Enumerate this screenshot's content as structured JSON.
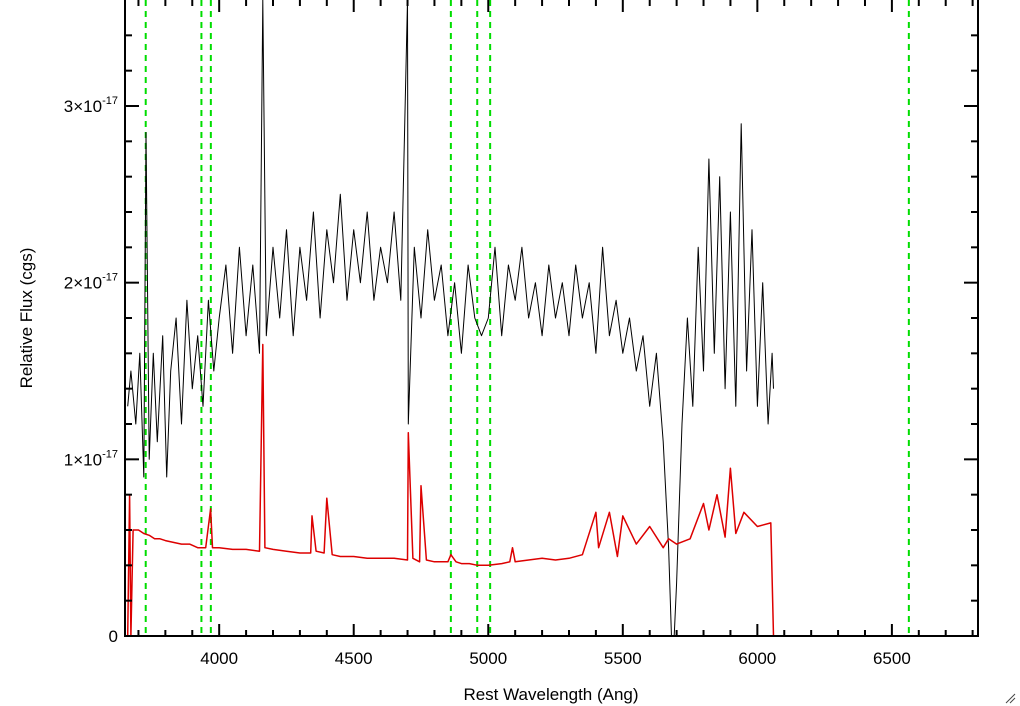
{
  "chart_data": {
    "type": "line",
    "xlabel": "Rest Wavelength (Ang)",
    "ylabel": "Relative Flux (cgs)",
    "xlim": [
      3650,
      6820
    ],
    "ylim": [
      0,
      3.6e-17
    ],
    "x_ticks": [
      {
        "value": 4000,
        "label": "4000"
      },
      {
        "value": 4500,
        "label": "4500"
      },
      {
        "value": 5000,
        "label": "5000"
      },
      {
        "value": 5500,
        "label": "5500"
      },
      {
        "value": 6000,
        "label": "6000"
      },
      {
        "value": 6500,
        "label": "6500"
      }
    ],
    "y_ticks": [
      {
        "value": 0,
        "mantissa": "0",
        "exponent": ""
      },
      {
        "value": 1e-17,
        "mantissa": "1×10",
        "exponent": "-17"
      },
      {
        "value": 2e-17,
        "mantissa": "2×10",
        "exponent": "-17"
      },
      {
        "value": 3e-17,
        "mantissa": "3×10",
        "exponent": "-17"
      }
    ],
    "grid": false,
    "reference_lines": {
      "style": "dashed",
      "color": "#00dd00",
      "x": [
        3727,
        3934,
        3969,
        4861,
        4959,
        5007,
        6563
      ]
    },
    "series": [
      {
        "color": "#000000",
        "line_width": 1,
        "x": [
          3660,
          3672,
          3690,
          3705,
          3720,
          3728,
          3740,
          3755,
          3770,
          3790,
          3805,
          3820,
          3840,
          3860,
          3880,
          3900,
          3920,
          3940,
          3960,
          3980,
          4000,
          4025,
          4050,
          4075,
          4100,
          4125,
          4150,
          4162,
          4175,
          4200,
          4225,
          4250,
          4275,
          4300,
          4325,
          4350,
          4375,
          4400,
          4425,
          4450,
          4475,
          4500,
          4525,
          4550,
          4575,
          4600,
          4625,
          4650,
          4675,
          4700,
          4703,
          4725,
          4750,
          4775,
          4800,
          4825,
          4850,
          4875,
          4900,
          4925,
          4950,
          4975,
          5000,
          5025,
          5050,
          5075,
          5100,
          5125,
          5150,
          5175,
          5200,
          5225,
          5250,
          5275,
          5300,
          5325,
          5350,
          5375,
          5400,
          5425,
          5450,
          5475,
          5500,
          5525,
          5550,
          5575,
          5600,
          5625,
          5650,
          5670,
          5685,
          5700,
          5720,
          5740,
          5760,
          5780,
          5800,
          5820,
          5840,
          5860,
          5880,
          5900,
          5920,
          5940,
          5960,
          5980,
          6000,
          6020,
          6040,
          6055,
          6060
        ],
        "y": [
          1.3e-17,
          1.5e-17,
          1.2e-17,
          1.6e-17,
          9e-18,
          2.85e-17,
          1e-17,
          1.6e-17,
          1.1e-17,
          1.7e-17,
          9e-18,
          1.5e-17,
          1.8e-17,
          1.2e-17,
          1.9e-17,
          1.4e-17,
          1.7e-17,
          1.3e-17,
          1.9e-17,
          1.5e-17,
          1.8e-17,
          2.1e-17,
          1.6e-17,
          2.2e-17,
          1.7e-17,
          2.1e-17,
          1.6e-17,
          3.6e-17,
          1.7e-17,
          2.2e-17,
          1.8e-17,
          2.3e-17,
          1.7e-17,
          2.2e-17,
          1.9e-17,
          2.4e-17,
          1.8e-17,
          2.3e-17,
          2e-17,
          2.5e-17,
          1.9e-17,
          2.3e-17,
          2e-17,
          2.4e-17,
          1.9e-17,
          2.2e-17,
          2e-17,
          2.4e-17,
          1.9e-17,
          3.6e-17,
          1.2e-17,
          2.2e-17,
          1.8e-17,
          2.3e-17,
          1.9e-17,
          2.1e-17,
          1.7e-17,
          2e-17,
          1.6e-17,
          2.1e-17,
          1.8e-17,
          1.7e-17,
          1.8e-17,
          2.2e-17,
          1.7e-17,
          2.1e-17,
          1.9e-17,
          2.2e-17,
          1.8e-17,
          2e-17,
          1.7e-17,
          2.1e-17,
          1.8e-17,
          2e-17,
          1.7e-17,
          2.1e-17,
          1.8e-17,
          2e-17,
          1.6e-17,
          2.2e-17,
          1.7e-17,
          1.9e-17,
          1.6e-17,
          1.8e-17,
          1.5e-17,
          1.7e-17,
          1.3e-17,
          1.6e-17,
          1.1e-17,
          5e-18,
          -2e-18,
          3e-18,
          1.2e-17,
          1.8e-17,
          1.3e-17,
          2.2e-17,
          1.5e-17,
          2.7e-17,
          1.6e-17,
          2.6e-17,
          1.4e-17,
          2.4e-17,
          1.3e-17,
          2.9e-17,
          1.5e-17,
          2.3e-17,
          1.3e-17,
          2e-17,
          1.2e-17,
          1.6e-17,
          1.4e-17
        ]
      },
      {
        "color": "#dd0000",
        "line_width": 1.5,
        "x": [
          3660,
          3667,
          3672,
          3680,
          3700,
          3720,
          3740,
          3760,
          3780,
          3800,
          3830,
          3860,
          3890,
          3920,
          3950,
          3968,
          3975,
          4000,
          4050,
          4100,
          4150,
          4162,
          4170,
          4200,
          4250,
          4300,
          4340,
          4345,
          4360,
          4390,
          4400,
          4420,
          4450,
          4500,
          4550,
          4600,
          4650,
          4700,
          4703,
          4720,
          4745,
          4750,
          4770,
          4800,
          4850,
          4861,
          4880,
          4900,
          4930,
          4960,
          5000,
          5050,
          5080,
          5090,
          5100,
          5150,
          5200,
          5250,
          5300,
          5350,
          5400,
          5410,
          5450,
          5480,
          5500,
          5550,
          5600,
          5650,
          5670,
          5700,
          5750,
          5800,
          5820,
          5850,
          5880,
          5900,
          5920,
          5950,
          6000,
          6050,
          6060,
          6070,
          6800
        ],
        "y": [
          0,
          8e-18,
          0,
          6e-18,
          6e-18,
          5.8e-18,
          5.7e-18,
          5.5e-18,
          5.5e-18,
          5.4e-18,
          5.3e-18,
          5.2e-18,
          5.2e-18,
          5e-18,
          5e-18,
          7.2e-18,
          5e-18,
          5e-18,
          4.9e-18,
          4.9e-18,
          4.8e-18,
          1.65e-17,
          5e-18,
          4.9e-18,
          4.8e-18,
          4.7e-18,
          4.7e-18,
          6.8e-18,
          4.8e-18,
          4.7e-18,
          7.8e-18,
          4.6e-18,
          4.5e-18,
          4.5e-18,
          4.4e-18,
          4.4e-18,
          4.4e-18,
          4.3e-18,
          1.15e-17,
          4.4e-18,
          4.2e-18,
          8.5e-18,
          4.3e-18,
          4.2e-18,
          4.2e-18,
          4.6e-18,
          4.2e-18,
          4.1e-18,
          4.1e-18,
          4e-18,
          4e-18,
          4.1e-18,
          4.2e-18,
          5e-18,
          4.2e-18,
          4.3e-18,
          4.4e-18,
          4.3e-18,
          4.4e-18,
          4.6e-18,
          7e-18,
          5e-18,
          7e-18,
          4.5e-18,
          6.8e-18,
          5.2e-18,
          6.2e-18,
          5e-18,
          5.5e-18,
          5.2e-18,
          5.5e-18,
          7.5e-18,
          6e-18,
          8e-18,
          5.6e-18,
          9.5e-18,
          5.8e-18,
          7e-18,
          6.2e-18,
          6.4e-18,
          0,
          0,
          0
        ]
      }
    ]
  }
}
